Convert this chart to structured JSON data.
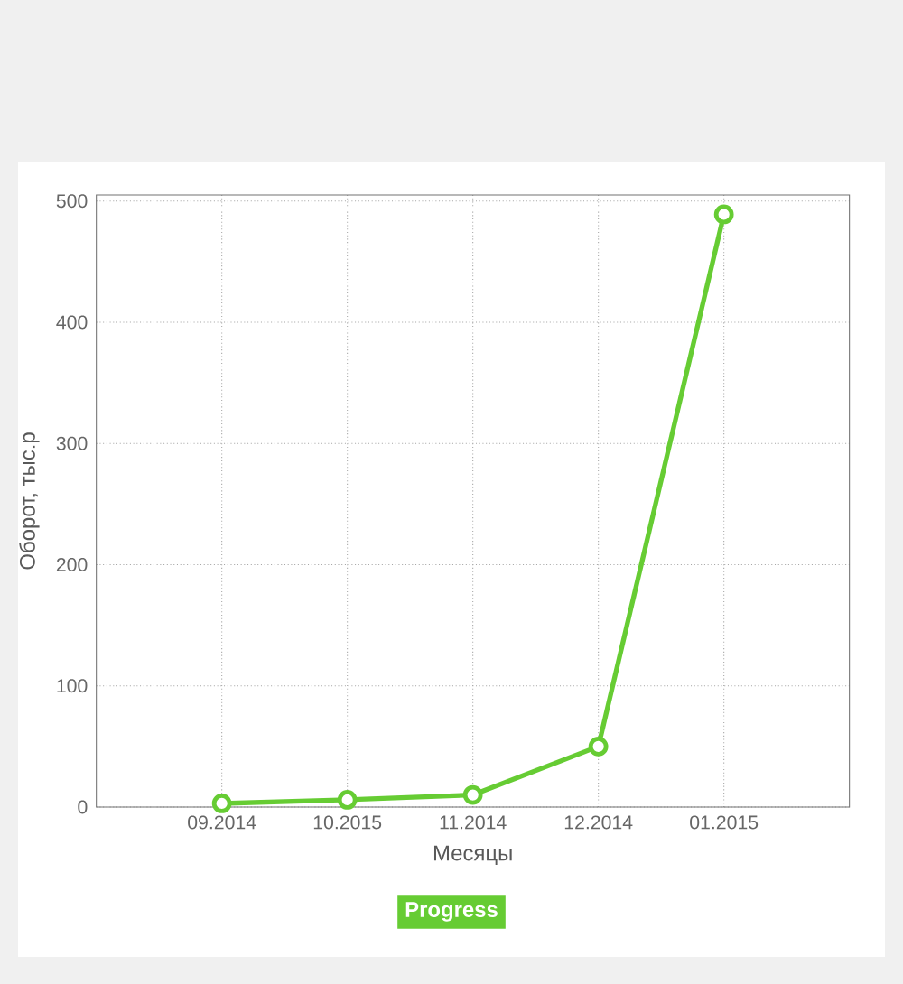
{
  "chart_data": {
    "type": "line",
    "xlabel": "Месяцы",
    "ylabel": "Оборот, тыс.р",
    "categories": [
      "09.2014",
      "10.2015",
      "11.2014",
      "12.2014",
      "01.2015"
    ],
    "series": [
      {
        "color": "#66cc33",
        "values": [
          3,
          6,
          10,
          50,
          489
        ]
      }
    ],
    "ylim": [
      0,
      505
    ],
    "yticks": [
      0,
      100,
      200,
      300,
      400,
      500
    ],
    "grid": true,
    "marker": "circle",
    "line_style": "solid",
    "annotations": [
      "Progress"
    ]
  }
}
